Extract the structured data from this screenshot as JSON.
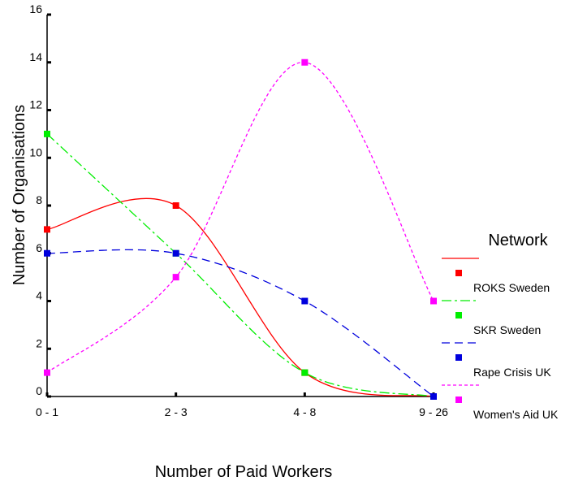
{
  "chart_data": {
    "type": "line",
    "xlabel": "Number of Paid Workers",
    "ylabel": "Number of Organisations",
    "categories": [
      "0 - 1",
      "2 - 3",
      "4 - 8",
      "9 - 26"
    ],
    "ylim": [
      0,
      16
    ],
    "yticks": [
      0,
      2,
      4,
      6,
      8,
      10,
      12,
      14,
      16
    ],
    "grid": false,
    "legend": {
      "title": "Network",
      "position": "right"
    },
    "series": [
      {
        "name": "ROKS Sweden",
        "values": [
          7,
          8,
          1,
          0
        ],
        "color": "#ff0000",
        "dash": "solid"
      },
      {
        "name": "SKR Sweden",
        "values": [
          11,
          6,
          1,
          0
        ],
        "color": "#00ee00",
        "dash": "dash-dot"
      },
      {
        "name": "Rape Crisis UK",
        "values": [
          6,
          6,
          4,
          0
        ],
        "color": "#0000dd",
        "dash": "dashed"
      },
      {
        "name": "Women's Aid UK",
        "values": [
          1,
          5,
          14,
          4
        ],
        "color": "#ff00ff",
        "dash": "dotted"
      }
    ]
  }
}
